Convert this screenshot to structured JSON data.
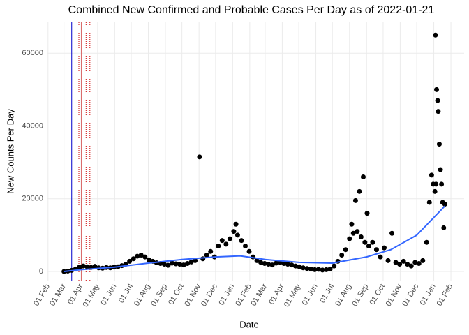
{
  "chart_data": {
    "type": "scatter",
    "title": "Combined New Confirmed and Probable Cases Per Day as of 2022-01-21",
    "x_label": "Date",
    "y_label": "New Counts Per Day",
    "color": "#000000",
    "x": [
      "2020-03-01",
      "2020-03-08",
      "2020-03-15",
      "2020-03-22",
      "2020-03-29",
      "2020-04-05",
      "2020-04-12",
      "2020-04-19",
      "2020-04-26",
      "2020-05-03",
      "2020-05-10",
      "2020-05-17",
      "2020-05-24",
      "2020-05-31",
      "2020-06-07",
      "2020-06-14",
      "2020-06-21",
      "2020-06-28",
      "2020-07-05",
      "2020-07-12",
      "2020-07-19",
      "2020-07-26",
      "2020-08-02",
      "2020-08-09",
      "2020-08-16",
      "2020-08-23",
      "2020-08-30",
      "2020-09-06",
      "2020-09-13",
      "2020-09-20",
      "2020-09-27",
      "2020-10-04",
      "2020-10-11",
      "2020-10-18",
      "2020-10-25",
      "2020-11-02",
      "2020-11-08",
      "2020-11-15",
      "2020-11-22",
      "2020-11-29",
      "2020-12-06",
      "2020-12-13",
      "2020-12-20",
      "2020-12-27",
      "2021-01-03",
      "2021-01-07",
      "2021-01-10",
      "2021-01-17",
      "2021-01-24",
      "2021-01-31",
      "2021-02-07",
      "2021-02-14",
      "2021-02-21",
      "2021-02-28",
      "2021-03-07",
      "2021-03-14",
      "2021-03-21",
      "2021-03-28",
      "2021-04-04",
      "2021-04-11",
      "2021-04-18",
      "2021-04-25",
      "2021-05-02",
      "2021-05-09",
      "2021-05-16",
      "2021-05-23",
      "2021-05-30",
      "2021-06-06",
      "2021-06-13",
      "2021-06-20",
      "2021-06-27",
      "2021-07-04",
      "2021-07-11",
      "2021-07-18",
      "2021-07-25",
      "2021-08-01",
      "2021-08-05",
      "2021-08-08",
      "2021-08-12",
      "2021-08-15",
      "2021-08-19",
      "2021-08-22",
      "2021-08-26",
      "2021-08-29",
      "2021-09-02",
      "2021-09-05",
      "2021-09-12",
      "2021-09-19",
      "2021-09-26",
      "2021-10-03",
      "2021-10-10",
      "2021-10-17",
      "2021-10-24",
      "2021-10-31",
      "2021-11-07",
      "2021-11-14",
      "2021-11-21",
      "2021-11-28",
      "2021-12-05",
      "2021-12-12",
      "2021-12-19",
      "2021-12-24",
      "2021-12-28",
      "2021-12-31",
      "2022-01-03",
      "2022-01-04",
      "2022-01-05",
      "2022-01-06",
      "2022-01-08",
      "2022-01-09",
      "2022-01-11",
      "2022-01-13",
      "2022-01-15",
      "2022-01-17",
      "2022-01-19",
      "2022-01-21"
    ],
    "values": [
      0,
      100,
      300,
      700,
      1200,
      1500,
      1300,
      1100,
      1400,
      1000,
      900,
      1100,
      1000,
      1200,
      1300,
      1600,
      2000,
      2800,
      3500,
      4200,
      4500,
      4000,
      3200,
      2800,
      2400,
      2200,
      2000,
      1700,
      2300,
      2100,
      2000,
      1800,
      2200,
      2600,
      3000,
      31500,
      3500,
      4500,
      5500,
      4000,
      7000,
      8500,
      7500,
      9000,
      11000,
      13000,
      10000,
      8500,
      7000,
      5500,
      4000,
      3000,
      2500,
      2200,
      2000,
      1800,
      2300,
      2500,
      2200,
      2000,
      1800,
      1500,
      1300,
      1000,
      800,
      700,
      500,
      600,
      400,
      500,
      700,
      1500,
      2800,
      4500,
      6000,
      9000,
      13000,
      10500,
      19500,
      11000,
      22000,
      9500,
      26000,
      8000,
      16000,
      7000,
      8000,
      6000,
      4000,
      6500,
      3000,
      10500,
      2500,
      2000,
      2800,
      2000,
      1500,
      2500,
      2200,
      3000,
      8000,
      19000,
      26500,
      24000,
      22000,
      65000,
      24000,
      50000,
      47000,
      44000,
      35000,
      28000,
      24000,
      19000,
      12000,
      18500
    ],
    "smooth": {
      "color": "#3366ff",
      "x": [
        "2020-03-01",
        "2020-04-01",
        "2020-06-01",
        "2020-08-01",
        "2020-10-01",
        "2020-12-01",
        "2021-01-15",
        "2021-03-01",
        "2021-05-01",
        "2021-07-01",
        "2021-09-01",
        "2021-10-15",
        "2021-12-01",
        "2022-01-21"
      ],
      "values": [
        0,
        500,
        1200,
        2300,
        3300,
        4000,
        4300,
        3300,
        2500,
        2300,
        4000,
        6000,
        10000,
        18000
      ]
    },
    "vlines": [
      {
        "x": "2020-03-15",
        "color": "#0000cc",
        "style": "solid"
      },
      {
        "x": "2020-04-02",
        "color": "#cc0000",
        "style": "solid"
      },
      {
        "x": "2020-03-28",
        "color": "#cc0000",
        "style": "dotted"
      },
      {
        "x": "2020-04-10",
        "color": "#cc0000",
        "style": "dotted"
      },
      {
        "x": "2020-04-17",
        "color": "#cc0000",
        "style": "dotted"
      }
    ],
    "xlim": [
      "2020-01-31",
      "2022-02-25"
    ],
    "xticks": [
      {
        "value": "2020-02-01",
        "label": "01 Feb"
      },
      {
        "value": "2020-03-01",
        "label": "01 Mar"
      },
      {
        "value": "2020-04-01",
        "label": "01 Apr"
      },
      {
        "value": "2020-05-01",
        "label": "01 May"
      },
      {
        "value": "2020-06-01",
        "label": "01 Jun"
      },
      {
        "value": "2020-07-01",
        "label": "01 Jul"
      },
      {
        "value": "2020-08-01",
        "label": "01 Aug"
      },
      {
        "value": "2020-09-01",
        "label": "01 Sep"
      },
      {
        "value": "2020-10-01",
        "label": "01 Oct"
      },
      {
        "value": "2020-11-01",
        "label": "01 Nov"
      },
      {
        "value": "2020-12-01",
        "label": "01 Dec"
      },
      {
        "value": "2021-01-01",
        "label": "01 Jan"
      },
      {
        "value": "2021-02-01",
        "label": "01 Feb"
      },
      {
        "value": "2021-03-01",
        "label": "01 Mar"
      },
      {
        "value": "2021-04-01",
        "label": "01 Apr"
      },
      {
        "value": "2021-05-01",
        "label": "01 May"
      },
      {
        "value": "2021-06-01",
        "label": "01 Jun"
      },
      {
        "value": "2021-07-01",
        "label": "01 Jul"
      },
      {
        "value": "2021-08-01",
        "label": "01 Aug"
      },
      {
        "value": "2021-09-01",
        "label": "01 Sep"
      },
      {
        "value": "2021-10-01",
        "label": "01 Oct"
      },
      {
        "value": "2021-11-01",
        "label": "01 Nov"
      },
      {
        "value": "2021-12-01",
        "label": "01 Dec"
      },
      {
        "value": "2022-01-01",
        "label": "01 Jan"
      },
      {
        "value": "2022-02-01",
        "label": "01 Feb"
      }
    ],
    "ylim": [
      -2500,
      68500
    ],
    "yticks": [
      0,
      20000,
      40000,
      60000
    ],
    "grid": true
  }
}
